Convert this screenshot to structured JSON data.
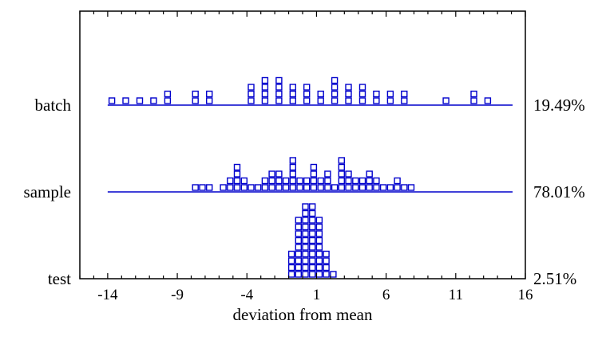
{
  "chart_data": {
    "type": "dot-plot",
    "title": "",
    "xlabel": "deviation from mean",
    "ylabel": "",
    "xlim": [
      -16,
      16
    ],
    "xticks": [
      -14,
      -9,
      -4,
      1,
      6,
      11,
      16
    ],
    "grid": false,
    "colors": {
      "marker": "#0000cc",
      "axis": "#000000"
    },
    "rows": [
      {
        "name": "batch",
        "percent_label": "19.49%",
        "bins": [
          {
            "x": -13.7,
            "count": 1
          },
          {
            "x": -12.7,
            "count": 1
          },
          {
            "x": -11.7,
            "count": 1
          },
          {
            "x": -10.7,
            "count": 1
          },
          {
            "x": -9.7,
            "count": 2
          },
          {
            "x": -7.7,
            "count": 2
          },
          {
            "x": -6.7,
            "count": 2
          },
          {
            "x": -3.7,
            "count": 3
          },
          {
            "x": -2.7,
            "count": 4
          },
          {
            "x": -1.7,
            "count": 4
          },
          {
            "x": -0.7,
            "count": 3
          },
          {
            "x": 0.3,
            "count": 3
          },
          {
            "x": 1.3,
            "count": 2
          },
          {
            "x": 2.3,
            "count": 4
          },
          {
            "x": 3.3,
            "count": 3
          },
          {
            "x": 4.3,
            "count": 3
          },
          {
            "x": 5.3,
            "count": 2
          },
          {
            "x": 6.3,
            "count": 2
          },
          {
            "x": 7.3,
            "count": 2
          },
          {
            "x": 10.3,
            "count": 1
          },
          {
            "x": 12.3,
            "count": 2
          },
          {
            "x": 13.3,
            "count": 1
          }
        ]
      },
      {
        "name": "sample",
        "percent_label": "78.01%",
        "bins": [
          {
            "x": -7.7,
            "count": 1
          },
          {
            "x": -7.2,
            "count": 1
          },
          {
            "x": -6.7,
            "count": 1
          },
          {
            "x": -5.7,
            "count": 1
          },
          {
            "x": -5.2,
            "count": 2
          },
          {
            "x": -4.7,
            "count": 4
          },
          {
            "x": -4.2,
            "count": 2
          },
          {
            "x": -3.7,
            "count": 1
          },
          {
            "x": -3.2,
            "count": 1
          },
          {
            "x": -2.7,
            "count": 2
          },
          {
            "x": -2.2,
            "count": 3
          },
          {
            "x": -1.7,
            "count": 3
          },
          {
            "x": -1.2,
            "count": 2
          },
          {
            "x": -0.7,
            "count": 5
          },
          {
            "x": -0.2,
            "count": 2
          },
          {
            "x": 0.3,
            "count": 2
          },
          {
            "x": 0.8,
            "count": 4
          },
          {
            "x": 1.3,
            "count": 2
          },
          {
            "x": 1.8,
            "count": 3
          },
          {
            "x": 2.3,
            "count": 1
          },
          {
            "x": 2.8,
            "count": 5
          },
          {
            "x": 3.3,
            "count": 3
          },
          {
            "x": 3.8,
            "count": 2
          },
          {
            "x": 4.3,
            "count": 2
          },
          {
            "x": 4.8,
            "count": 3
          },
          {
            "x": 5.3,
            "count": 2
          },
          {
            "x": 5.8,
            "count": 1
          },
          {
            "x": 6.3,
            "count": 1
          },
          {
            "x": 6.8,
            "count": 2
          },
          {
            "x": 7.3,
            "count": 1
          },
          {
            "x": 7.8,
            "count": 1
          }
        ]
      },
      {
        "name": "test",
        "percent_label": "2.51%",
        "bins": [
          {
            "x": -0.8,
            "count": 4
          },
          {
            "x": -0.3,
            "count": 9
          },
          {
            "x": 0.2,
            "count": 11
          },
          {
            "x": 0.7,
            "count": 11
          },
          {
            "x": 1.2,
            "count": 9
          },
          {
            "x": 1.7,
            "count": 4
          },
          {
            "x": 2.2,
            "count": 1
          }
        ]
      }
    ]
  }
}
